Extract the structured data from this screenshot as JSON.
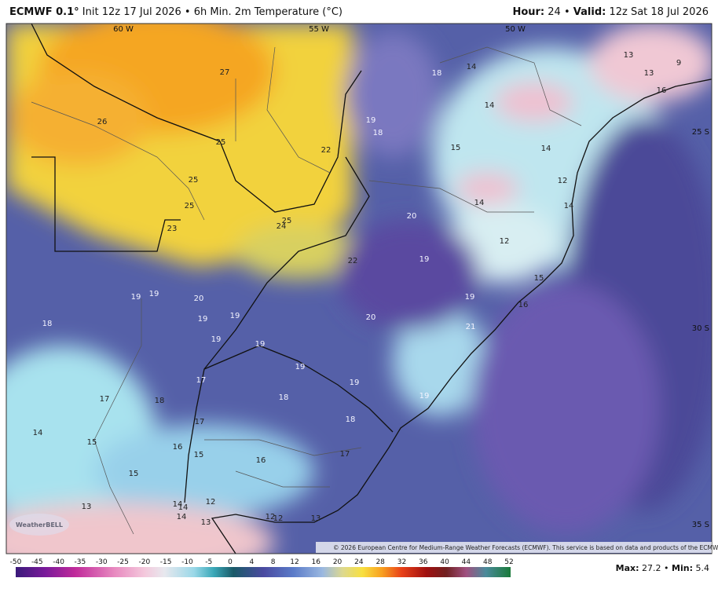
{
  "header": {
    "model": "ECMWF 0.1°",
    "product": "Init 12z 17 Jul 2026",
    "separator": "•",
    "field": "6h Min. 2m Temperature (°C)",
    "hour_label": "Hour:",
    "hour": "24",
    "valid_label": "Valid:",
    "valid": "12z Sat 18 Jul 2026"
  },
  "map": {
    "grid_labels": [
      "60 W",
      "55 W",
      "50 W",
      "25 S",
      "30 S",
      "35 S"
    ],
    "labels": [
      26,
      27,
      25,
      25,
      25,
      23,
      25,
      24,
      22,
      19,
      18,
      18,
      14,
      14,
      13,
      13,
      9,
      16,
      15,
      14,
      12,
      14,
      14,
      20,
      12,
      22,
      19,
      15,
      16,
      19,
      21,
      20,
      19,
      19,
      20,
      19,
      19,
      19,
      18,
      19,
      19,
      19,
      19,
      17,
      18,
      17,
      18,
      18,
      17,
      14,
      15,
      16,
      15,
      16,
      17,
      15,
      13,
      14,
      14,
      12,
      14,
      13,
      12,
      12,
      13
    ],
    "copyright": "© 2026 European Centre for Medium-Range Weather Forecasts (ECMWF). This service is based on data and products of the ECMWF.",
    "logo": "WeatherBELL"
  },
  "colorbar": {
    "ticks": [
      -50,
      -45,
      -40,
      -35,
      -30,
      -25,
      -20,
      -15,
      -10,
      -5,
      0,
      4,
      8,
      12,
      16,
      20,
      24,
      28,
      32,
      36,
      40,
      44,
      48,
      52
    ]
  },
  "footer": {
    "max_label": "Max:",
    "max": 27.2,
    "separator": "•",
    "min_label": "Min:",
    "min": 5.4
  }
}
